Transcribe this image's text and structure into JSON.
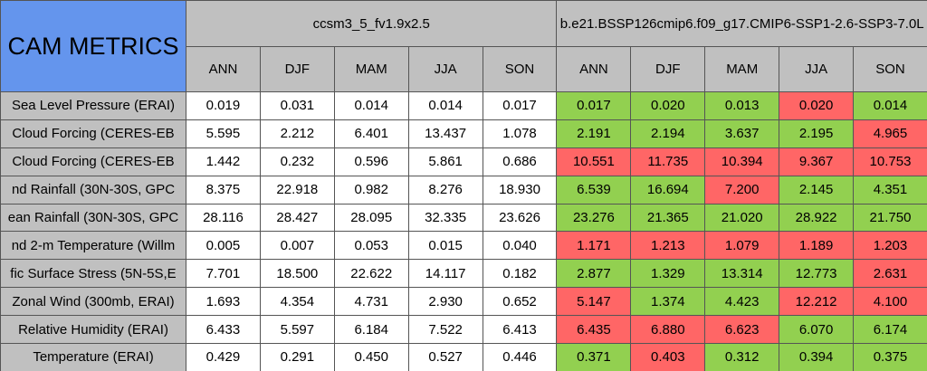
{
  "header": {
    "title": "CAM METRICS",
    "cases": [
      {
        "name": "ccsm3_5_fv1.9x2.5",
        "seasons": [
          "ANN",
          "DJF",
          "MAM",
          "JJA",
          "SON"
        ]
      },
      {
        "name": "b.e21.BSSP126cmip6.f09_g17.CMIP6-SSP1-2.6-SSP3-7.0L",
        "seasons": [
          "ANN",
          "DJF",
          "MAM",
          "JJA",
          "SON"
        ]
      }
    ]
  },
  "colors": {
    "title": "#6495ed",
    "header": "#c0c0c0",
    "border": "#555555"
  },
  "table": {
    "rows": [
      {
        "label": "Sea Level Pressure (ERAI)",
        "values": [
          "0.019",
          "0.031",
          "0.014",
          "0.014",
          "0.017",
          "0.017",
          "0.020",
          "0.013",
          "0.020",
          "0.014"
        ],
        "fills": [
          "#ffffff",
          "#ffffff",
          "#ffffff",
          "#ffffff",
          "#ffffff",
          "#92d050",
          "#92d050",
          "#92d050",
          "#ff6666",
          "#92d050"
        ]
      },
      {
        "label": "Cloud Forcing (CERES-EB",
        "values": [
          "5.595",
          "2.212",
          "6.401",
          "13.437",
          "1.078",
          "2.191",
          "2.194",
          "3.637",
          "2.195",
          "4.965"
        ],
        "fills": [
          "#ffffff",
          "#ffffff",
          "#ffffff",
          "#ffffff",
          "#ffffff",
          "#92d050",
          "#92d050",
          "#92d050",
          "#92d050",
          "#ff6666"
        ]
      },
      {
        "label": "Cloud Forcing (CERES-EB",
        "values": [
          "1.442",
          "0.232",
          "0.596",
          "5.861",
          "0.686",
          "10.551",
          "11.735",
          "10.394",
          "9.367",
          "10.753"
        ],
        "fills": [
          "#ffffff",
          "#ffffff",
          "#ffffff",
          "#ffffff",
          "#ffffff",
          "#ff6666",
          "#ff6666",
          "#ff6666",
          "#ff6666",
          "#ff6666"
        ]
      },
      {
        "label": "nd Rainfall (30N-30S, GPC",
        "values": [
          "8.375",
          "22.918",
          "0.982",
          "8.276",
          "18.930",
          "6.539",
          "16.694",
          "7.200",
          "2.145",
          "4.351"
        ],
        "fills": [
          "#ffffff",
          "#ffffff",
          "#ffffff",
          "#ffffff",
          "#ffffff",
          "#92d050",
          "#92d050",
          "#ff6666",
          "#92d050",
          "#92d050"
        ]
      },
      {
        "label": "ean Rainfall (30N-30S, GPC",
        "values": [
          "28.116",
          "28.427",
          "28.095",
          "32.335",
          "23.626",
          "23.276",
          "21.365",
          "21.020",
          "28.922",
          "21.750"
        ],
        "fills": [
          "#ffffff",
          "#ffffff",
          "#ffffff",
          "#ffffff",
          "#ffffff",
          "#92d050",
          "#92d050",
          "#92d050",
          "#92d050",
          "#92d050"
        ]
      },
      {
        "label": "nd 2-m Temperature (Willm",
        "values": [
          "0.005",
          "0.007",
          "0.053",
          "0.015",
          "0.040",
          "1.171",
          "1.213",
          "1.079",
          "1.189",
          "1.203"
        ],
        "fills": [
          "#ffffff",
          "#ffffff",
          "#ffffff",
          "#ffffff",
          "#ffffff",
          "#ff6666",
          "#ff6666",
          "#ff6666",
          "#ff6666",
          "#ff6666"
        ]
      },
      {
        "label": "fic Surface Stress (5N-5S,E",
        "values": [
          "7.701",
          "18.500",
          "22.622",
          "14.117",
          "0.182",
          "2.877",
          "1.329",
          "13.314",
          "12.773",
          "2.631"
        ],
        "fills": [
          "#ffffff",
          "#ffffff",
          "#ffffff",
          "#ffffff",
          "#ffffff",
          "#92d050",
          "#92d050",
          "#92d050",
          "#92d050",
          "#ff6666"
        ]
      },
      {
        "label": "Zonal Wind (300mb, ERAI)",
        "values": [
          "1.693",
          "4.354",
          "4.731",
          "2.930",
          "0.652",
          "5.147",
          "1.374",
          "4.423",
          "12.212",
          "4.100"
        ],
        "fills": [
          "#ffffff",
          "#ffffff",
          "#ffffff",
          "#ffffff",
          "#ffffff",
          "#ff6666",
          "#92d050",
          "#92d050",
          "#ff6666",
          "#ff6666"
        ]
      },
      {
        "label": "Relative Humidity (ERAI)",
        "values": [
          "6.433",
          "5.597",
          "6.184",
          "7.522",
          "6.413",
          "6.435",
          "6.880",
          "6.623",
          "6.070",
          "6.174"
        ],
        "fills": [
          "#ffffff",
          "#ffffff",
          "#ffffff",
          "#ffffff",
          "#ffffff",
          "#ff6666",
          "#ff6666",
          "#ff6666",
          "#92d050",
          "#92d050"
        ]
      },
      {
        "label": "Temperature (ERAI)",
        "values": [
          "0.429",
          "0.291",
          "0.450",
          "0.527",
          "0.446",
          "0.371",
          "0.403",
          "0.312",
          "0.394",
          "0.375"
        ],
        "fills": [
          "#ffffff",
          "#ffffff",
          "#ffffff",
          "#ffffff",
          "#ffffff",
          "#92d050",
          "#ff6666",
          "#92d050",
          "#92d050",
          "#92d050"
        ]
      }
    ]
  }
}
